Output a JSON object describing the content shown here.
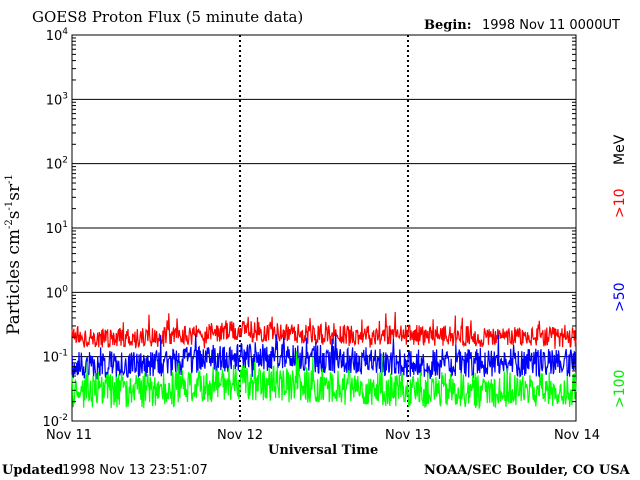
{
  "header": {
    "title": "GOES8 Proton Flux (5 minute data)",
    "begin_label": "Begin:",
    "begin_value": "1998 Nov 11 0000UT"
  },
  "footer": {
    "updated_label": "Updated",
    "updated_value": "1998 Nov 13 23:51:07",
    "credit": "NOAA/SEC Boulder, CO USA"
  },
  "chart_data": {
    "type": "line",
    "title": "GOES8 Proton Flux (5 minute data)",
    "xlabel": "Universal Time",
    "ylabel": "Particles cm⁻²s⁻¹sr⁻¹",
    "yscale": "log",
    "ylim": [
      0.01,
      10000
    ],
    "xlim": [
      "1998-11-11",
      "1998-11-14"
    ],
    "x_tick_labels": [
      "Nov 11",
      "Nov 12",
      "Nov 13",
      "Nov 14"
    ],
    "y_tick_labels": [
      {
        "base": "10",
        "exp": "-2"
      },
      {
        "base": "10",
        "exp": "-1"
      },
      {
        "base": "10",
        "exp": "0"
      },
      {
        "base": "10",
        "exp": "1"
      },
      {
        "base": "10",
        "exp": "2"
      },
      {
        "base": "10",
        "exp": "3"
      },
      {
        "base": "10",
        "exp": "4"
      }
    ],
    "grid": "horizontal lines at each decade",
    "legend": {
      "unit": "MeV",
      "entries": [
        ">10",
        ">50",
        ">100"
      ],
      "placement": "right side, vertical"
    },
    "series": [
      {
        "name": ">10",
        "color": "#ff0000",
        "x": [
          "1998-11-11",
          "1998-11-11 12:00",
          "1998-11-12",
          "1998-11-12 12:00",
          "1998-11-13",
          "1998-11-13 12:00",
          "1998-11-14"
        ],
        "y": [
          0.2,
          0.2,
          0.25,
          0.22,
          0.22,
          0.2,
          0.2
        ]
      },
      {
        "name": ">50",
        "color": "#0000ff",
        "x": [
          "1998-11-11",
          "1998-11-11 12:00",
          "1998-11-12",
          "1998-11-12 12:00",
          "1998-11-13",
          "1998-11-13 12:00",
          "1998-11-14"
        ],
        "y": [
          0.07,
          0.08,
          0.1,
          0.09,
          0.08,
          0.08,
          0.08
        ]
      },
      {
        "name": ">100",
        "color": "#00ff00",
        "x": [
          "1998-11-11",
          "1998-11-11 12:00",
          "1998-11-12",
          "1998-11-12 12:00",
          "1998-11-13",
          "1998-11-13 12:00",
          "1998-11-14"
        ],
        "y": [
          0.03,
          0.03,
          0.04,
          0.035,
          0.03,
          0.03,
          0.03
        ]
      }
    ]
  }
}
